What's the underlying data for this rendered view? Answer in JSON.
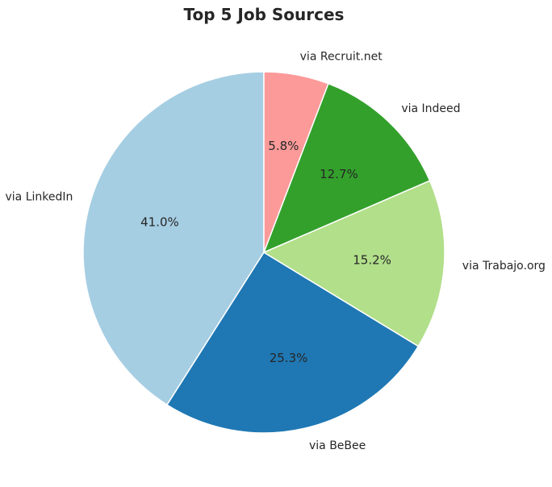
{
  "chart_data": {
    "type": "pie",
    "title": "Top 5 Job Sources",
    "slices": [
      {
        "label": "via LinkedIn",
        "value": 41.0,
        "pct_label": "41.0%",
        "color": "#a6cee3"
      },
      {
        "label": "via BeBee",
        "value": 25.3,
        "pct_label": "25.3%",
        "color": "#1f78b4"
      },
      {
        "label": "via Trabajo.org",
        "value": 15.2,
        "pct_label": "15.2%",
        "color": "#b2df8a"
      },
      {
        "label": "via Indeed",
        "value": 12.7,
        "pct_label": "12.7%",
        "color": "#33a02c"
      },
      {
        "label": "via Recruit.net",
        "value": 5.8,
        "pct_label": "5.8%",
        "color": "#fb9a99"
      }
    ],
    "start_angle": "top",
    "direction": "counterclockwise",
    "legend": "none"
  }
}
